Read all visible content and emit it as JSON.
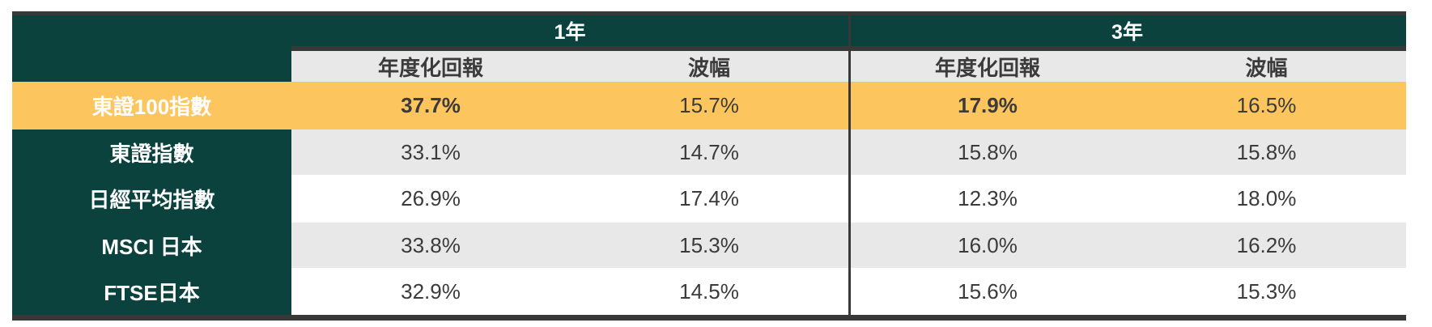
{
  "colors": {
    "dark_green": "#0B423E",
    "highlight_yellow": "#FDC55D",
    "row_gray": "#E8E8E8",
    "border_dark": "#383838",
    "text_dark": "#3B3B3B",
    "text_white": "#FFFFFF"
  },
  "table": {
    "corner_label": "",
    "sections": [
      {
        "label": "1年",
        "sub": [
          "年度化回報",
          "波幅"
        ]
      },
      {
        "label": "3年",
        "sub": [
          "年度化回報",
          "波幅"
        ]
      }
    ],
    "rows": [
      {
        "label": "東證100指數",
        "highlight": true,
        "values": [
          "37.7%",
          "15.7%",
          "17.9%",
          "16.5%"
        ]
      },
      {
        "label": "東證指數",
        "highlight": false,
        "values": [
          "33.1%",
          "14.7%",
          "15.8%",
          "15.8%"
        ]
      },
      {
        "label": "日經平均指數",
        "highlight": false,
        "values": [
          "26.9%",
          "17.4%",
          "12.3%",
          "18.0%"
        ]
      },
      {
        "label": "MSCI 日本",
        "highlight": false,
        "values": [
          "33.8%",
          "15.3%",
          "16.0%",
          "16.2%"
        ]
      },
      {
        "label": "FTSE日本",
        "highlight": false,
        "values": [
          "32.9%",
          "14.5%",
          "15.6%",
          "15.3%"
        ]
      }
    ]
  },
  "chart_data": {
    "type": "table",
    "column_groups": [
      "1年",
      "3年"
    ],
    "columns": [
      "",
      "1年 年度化回報",
      "1年 波幅",
      "3年 年度化回報",
      "3年 波幅"
    ],
    "rows": [
      [
        "東證100指數",
        "37.7%",
        "15.7%",
        "17.9%",
        "16.5%"
      ],
      [
        "東證指數",
        "33.1%",
        "14.7%",
        "15.8%",
        "15.8%"
      ],
      [
        "日經平均指數",
        "26.9%",
        "17.4%",
        "12.3%",
        "18.0%"
      ],
      [
        "MSCI 日本",
        "33.8%",
        "15.3%",
        "16.0%",
        "16.2%"
      ],
      [
        "FTSE日本",
        "32.9%",
        "14.5%",
        "15.6%",
        "15.3%"
      ]
    ],
    "highlighted_row": "東證100指數",
    "bold_cells": [
      "東證100指數 1年 年度化回報",
      "東證100指數 3年 年度化回報"
    ]
  }
}
